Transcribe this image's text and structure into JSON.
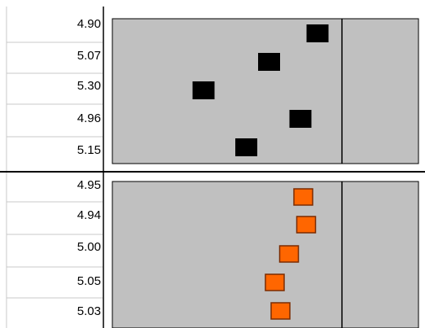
{
  "colors": {
    "panel_bg": "#c0c0c0",
    "grid": "#c8c8c8",
    "black_marker": "#000000",
    "orange_marker": "#ff6600",
    "orange_border": "#7a2b00"
  },
  "panels": [
    {
      "name": "top-panel",
      "rows": [
        {
          "label": "4.90",
          "value": 4.9
        },
        {
          "label": "5.07",
          "value": 5.07
        },
        {
          "label": "5.30",
          "value": 5.3
        },
        {
          "label": "4.96",
          "value": 4.96
        },
        {
          "label": "5.15",
          "value": 5.15
        }
      ],
      "marker": "black"
    },
    {
      "name": "bottom-panel",
      "rows": [
        {
          "label": "4.95",
          "value": 4.95
        },
        {
          "label": "4.94",
          "value": 4.94
        },
        {
          "label": "5.00",
          "value": 5.0
        },
        {
          "label": "5.05",
          "value": 5.05
        },
        {
          "label": "5.03",
          "value": 5.03
        }
      ],
      "marker": "orange"
    }
  ]
}
